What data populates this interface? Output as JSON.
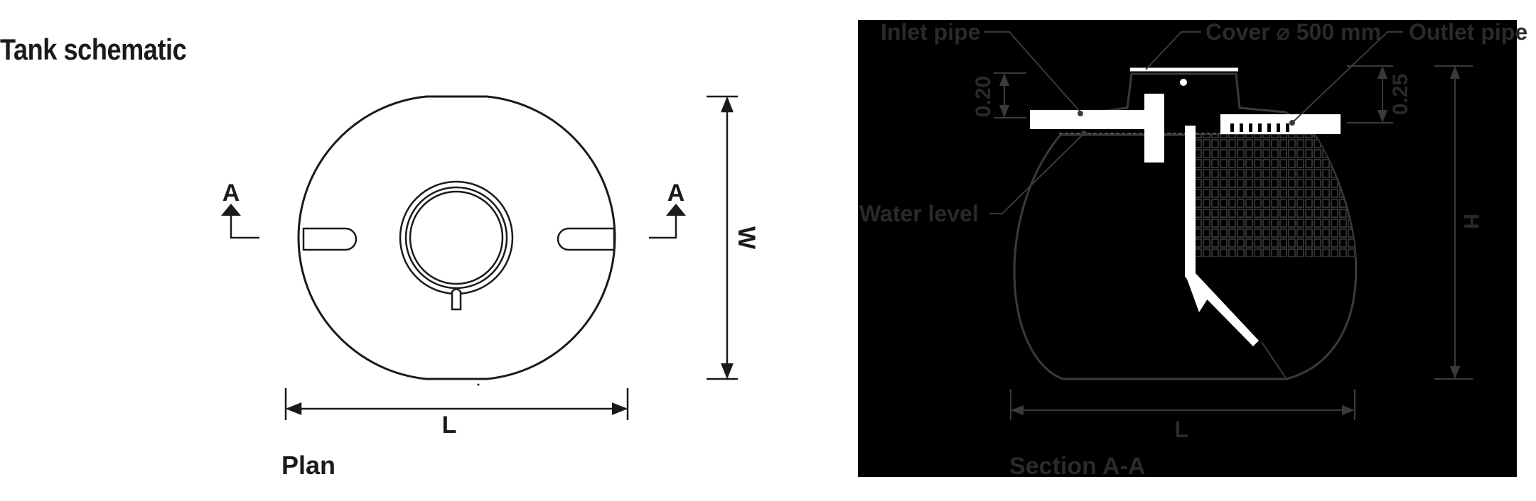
{
  "title": "Tank schematic",
  "plan": {
    "caption": "Plan",
    "section_marker": "A",
    "dim_length": "L",
    "dim_width": "W"
  },
  "section": {
    "caption": "Section A-A",
    "inlet_label": "Inlet pipe",
    "cover_label": "Cover ⌀ 500 mm",
    "outlet_label": "Outlet pipe",
    "water_label": "Water level",
    "dim_inlet": "0.20",
    "dim_outlet": "0.25",
    "dim_height": "H",
    "dim_length": "L"
  },
  "colors": {
    "line_plan": "#1a1a1a",
    "panel_bg": "#000000",
    "line_section": "#3a3a3a",
    "text_section": "#2a2a2a",
    "pipe_fill": "#ffffff"
  }
}
